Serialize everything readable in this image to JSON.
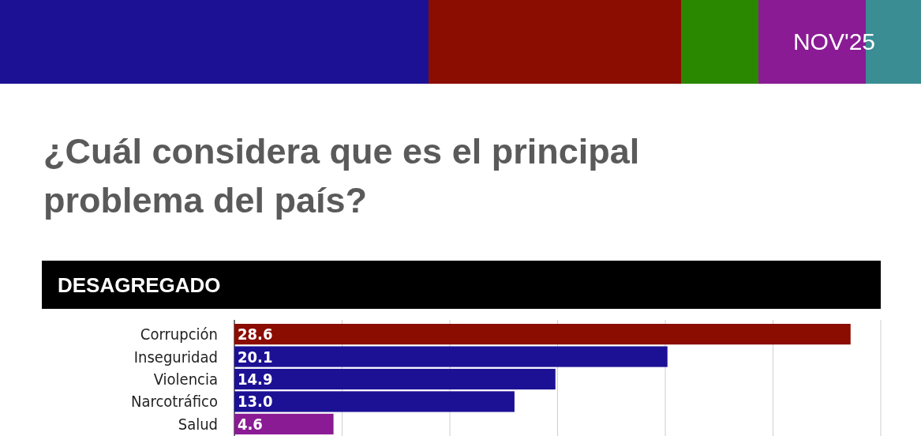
{
  "chart_data": {
    "type": "bar",
    "orientation": "horizontal",
    "title": "¿Cuál considera que es el principal problema del país?",
    "subtitle": "DESAGREGADO",
    "annotations": [
      "NOV'25"
    ],
    "categories": [
      "Corrupción",
      "Inseguridad",
      "Violencia",
      "Narcotráfico",
      "Salud"
    ],
    "values": [
      28.6,
      20.1,
      14.9,
      13.0,
      4.6
    ],
    "value_labels": [
      "28.6",
      "20.1",
      "14.9",
      "13.0",
      "4.6"
    ],
    "colors": [
      "#8b0c00",
      "#1c1195",
      "#1c1195",
      "#1c1195",
      "#8a1b94"
    ],
    "xlim": [
      0,
      30
    ],
    "xticks": [
      {
        "value": 0,
        "label": null
      },
      {
        "value": 5,
        "label": null
      },
      {
        "value": 10,
        "label": null
      },
      {
        "value": 15,
        "label": null
      },
      {
        "value": 20,
        "label": null
      },
      {
        "value": 25,
        "label": null
      },
      {
        "value": 30,
        "label": null
      }
    ],
    "tick_labels": "y",
    "grid": "x"
  }
}
